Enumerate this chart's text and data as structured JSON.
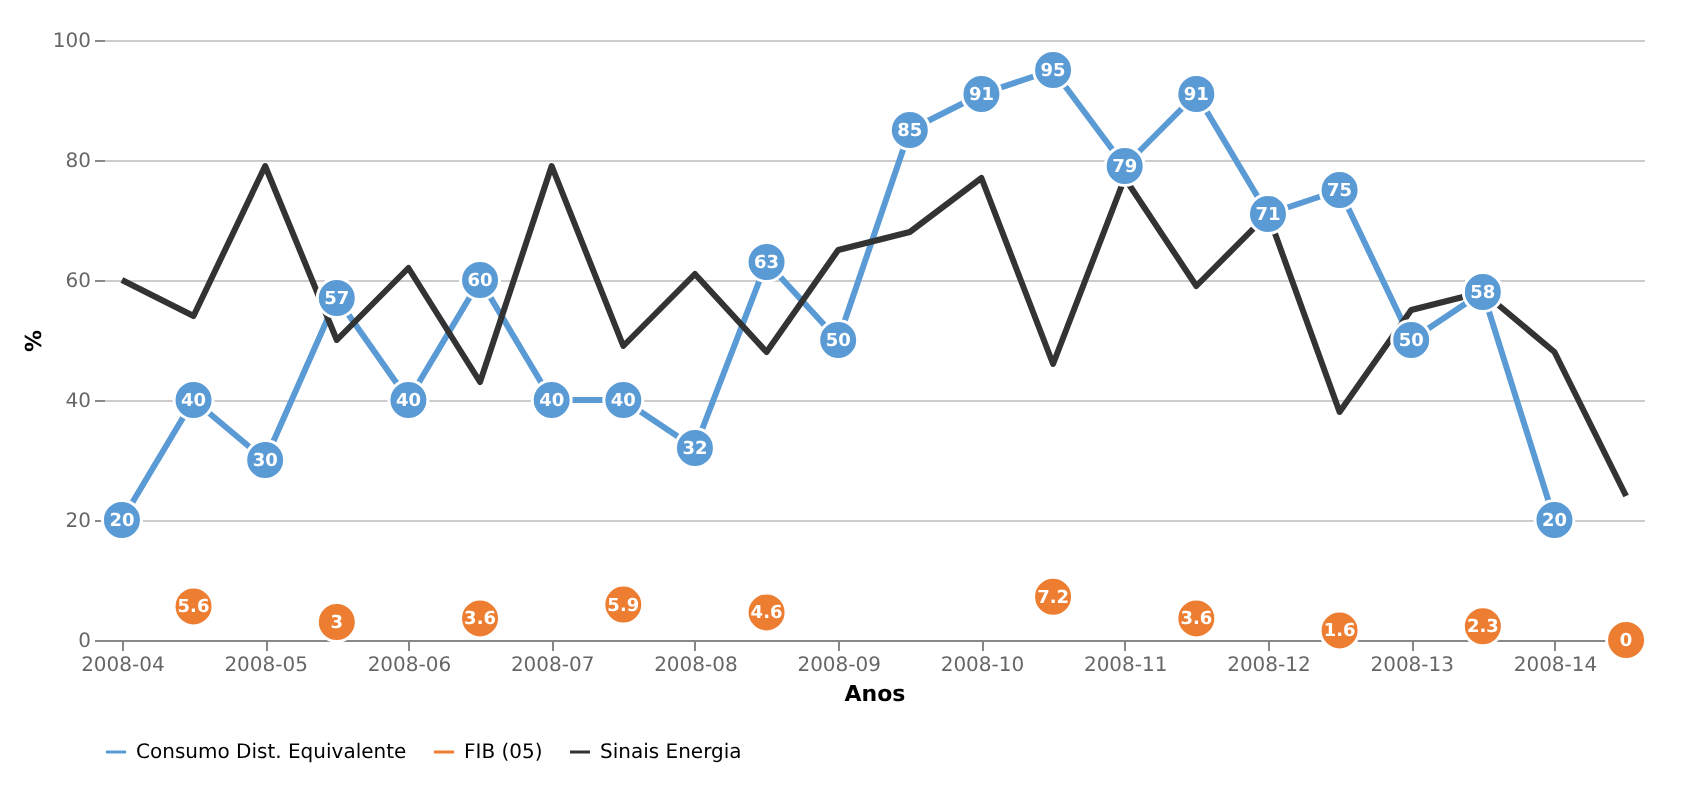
{
  "chart_data": {
    "type": "line",
    "xlabel": "Anos",
    "ylabel": "%",
    "categories": [
      "2008-04",
      null,
      "2008-05",
      null,
      "2008-06",
      null,
      "2008-07",
      null,
      "2008-08",
      null,
      "2008-09",
      null,
      "2008-10",
      null,
      "2008-11",
      null,
      "2008-12",
      null,
      "2008-13",
      null,
      "2008-14",
      null
    ],
    "series": [
      {
        "name": "Consumo Dist. Equivalente",
        "color": "#5b9bd5",
        "marker": "circle",
        "values": [
          20,
          40,
          30,
          57,
          40,
          60,
          40,
          40,
          32,
          63,
          50,
          85,
          91,
          95,
          79,
          91,
          71,
          75,
          50,
          58,
          20,
          null
        ],
        "value_labels": [
          "20",
          "40",
          "30",
          "57",
          "40",
          "60",
          "40",
          "40",
          "32",
          "63",
          "50",
          "85",
          "91",
          "95",
          "79",
          "91",
          "71",
          "75",
          "50",
          "58",
          "20",
          null
        ]
      },
      {
        "name": "FIB (05)",
        "type": "scatter",
        "color": "#ed7d31",
        "marker": "circle",
        "values": [
          null,
          5.6,
          null,
          3,
          null,
          3.6,
          null,
          5.9,
          null,
          4.6,
          null,
          null,
          null,
          7.2,
          null,
          3.6,
          null,
          1.6,
          null,
          2.3,
          null,
          0
        ],
        "value_labels": [
          null,
          "5.6",
          null,
          "3",
          null,
          "3.6",
          null,
          "5.9",
          null,
          "4.6",
          null,
          null,
          null,
          "7.2",
          null,
          "3.6",
          null,
          "1.6",
          null,
          "2.3",
          null,
          "0"
        ]
      },
      {
        "name": "Sinais Energia",
        "color": "#333333",
        "marker": "none",
        "values": [
          60,
          54,
          79,
          50,
          62,
          43,
          79,
          49,
          61,
          48,
          65,
          68,
          77,
          46,
          77,
          59,
          71,
          38,
          55,
          58,
          48,
          24
        ]
      }
    ],
    "ylim": [
      0,
      100
    ],
    "yticks": [
      0,
      20,
      40,
      60,
      80,
      100
    ],
    "grid": "y",
    "legend": "bottom"
  }
}
